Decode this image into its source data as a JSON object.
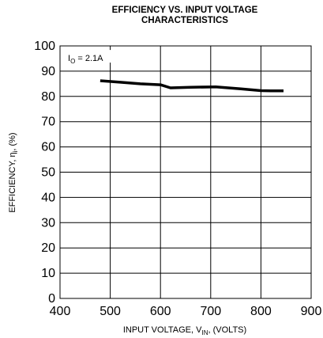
{
  "chart_data": {
    "type": "line",
    "title_lines": [
      "EFFICIENCY VS. INPUT VOLTAGE",
      "CHARACTERISTICS"
    ],
    "xlabel": {
      "prefix": "INPUT VOLTAGE, V",
      "sub": "IN",
      "suffix": ", (VOLTS)"
    },
    "ylabel": {
      "prefix": "EFFICIENCY, η",
      "sub": "i",
      "suffix": ", (%)"
    },
    "xlim": [
      400,
      900
    ],
    "ylim": [
      0,
      100
    ],
    "xticks": [
      400,
      500,
      600,
      700,
      800,
      900
    ],
    "yticks": [
      0,
      10,
      20,
      30,
      40,
      50,
      60,
      70,
      80,
      90,
      100
    ],
    "grid": true,
    "annotation": {
      "prefix": "I",
      "sub": "O",
      "suffix": " = 2.1A"
    },
    "series": [
      {
        "x": [
          480,
          520,
          560,
          600,
          620,
          660,
          710,
          760,
          800,
          820,
          845
        ],
        "y": [
          86.2,
          85.6,
          85.0,
          84.6,
          83.4,
          83.6,
          83.8,
          83.0,
          82.3,
          82.2,
          82.2
        ]
      }
    ]
  },
  "style": {
    "line_color": "#000000",
    "grid_color": "#000000"
  }
}
